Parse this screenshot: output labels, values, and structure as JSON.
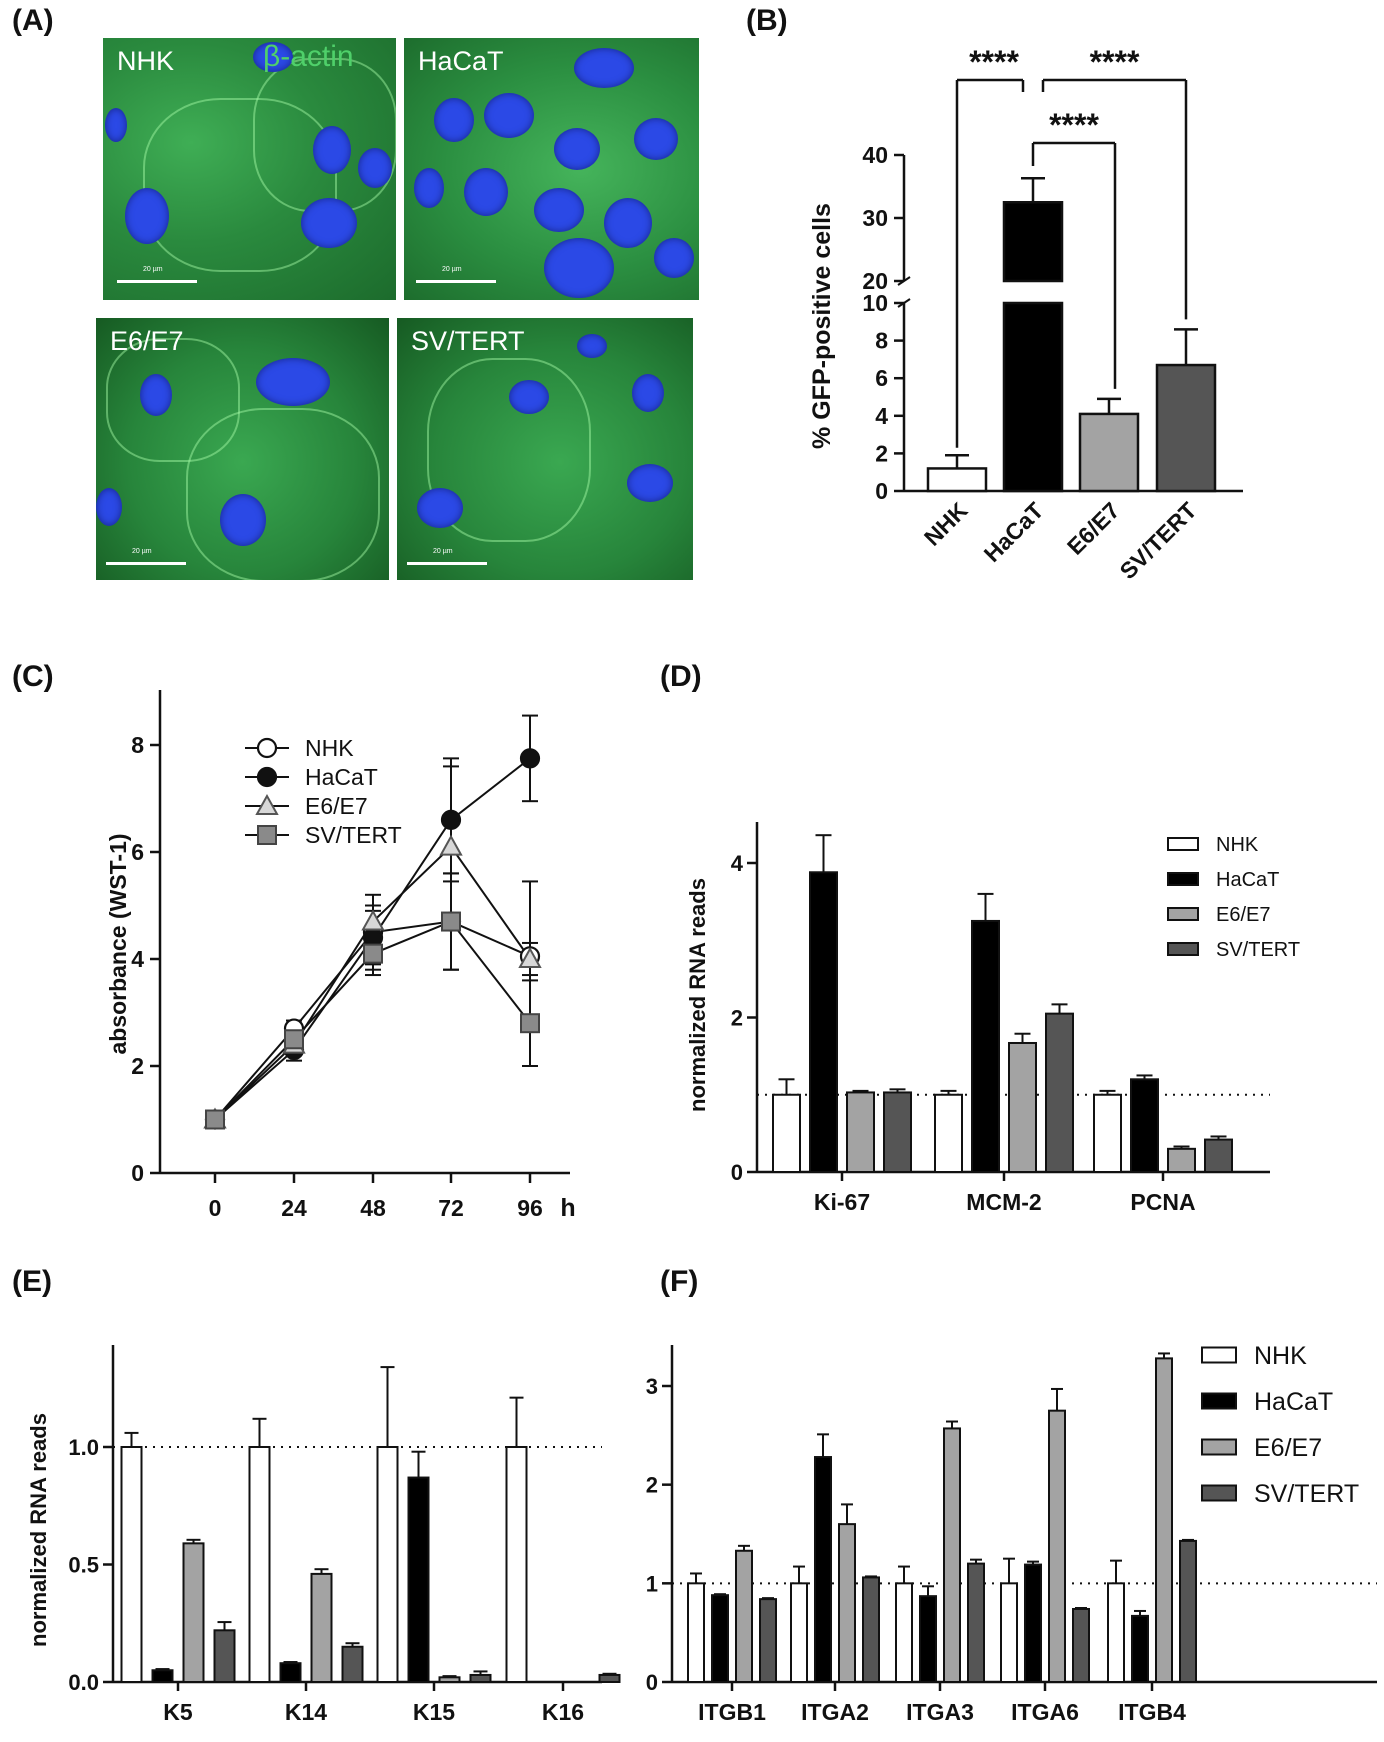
{
  "panels": {
    "A": "(A)",
    "B": "(B)",
    "C": "(C)",
    "D": "(D)",
    "E": "(E)",
    "F": "(F)"
  },
  "microscopy": {
    "stain_label": "β-actin",
    "scale_bar_text": "20 µm",
    "tiles": [
      {
        "label": "NHK"
      },
      {
        "label": "HaCaT"
      },
      {
        "label": "E6/E7"
      },
      {
        "label": "SV/TERT"
      }
    ]
  },
  "colors": {
    "NHK": "#ffffff",
    "HaCaT": "#000000",
    "E6/E7": "#a3a3a3",
    "SV/TERT": "#555555"
  },
  "chart_data": [
    {
      "id": "B",
      "type": "bar",
      "ylabel": "% GFP-positive cells",
      "categories": [
        "NHK",
        "HaCaT",
        "E6/E7",
        "SV/TERT"
      ],
      "values": [
        1.2,
        32.5,
        4.1,
        6.7
      ],
      "errors": [
        0.7,
        3.8,
        0.8,
        1.9
      ],
      "y_axis_break": {
        "lower": [
          0,
          10
        ],
        "upper": [
          20,
          40
        ]
      },
      "yticks_lower": [
        0,
        2,
        4,
        6,
        8,
        10
      ],
      "yticks_upper": [
        20,
        30,
        40
      ],
      "significance": [
        {
          "from": "NHK",
          "to": "HaCaT",
          "label": "****"
        },
        {
          "from": "HaCaT",
          "to": "SV/TERT",
          "label": "****"
        },
        {
          "from": "HaCaT",
          "to": "E6/E7",
          "label": "****"
        }
      ]
    },
    {
      "id": "C",
      "type": "line",
      "ylabel": "absorbance (WST-1)",
      "xunit": "h",
      "x": [
        0,
        24,
        48,
        72,
        96
      ],
      "ylim": [
        0,
        9
      ],
      "yticks": [
        0,
        2,
        4,
        6,
        8
      ],
      "legend_position": "top-left",
      "series": [
        {
          "name": "NHK",
          "marker": "circle-open",
          "values": [
            1.0,
            2.7,
            4.5,
            4.7,
            4.05
          ],
          "errors": [
            0,
            0.15,
            0.7,
            0.9,
            1.4
          ]
        },
        {
          "name": "HaCaT",
          "marker": "circle-filled",
          "values": [
            1.0,
            2.3,
            4.4,
            6.6,
            7.75
          ],
          "errors": [
            0,
            0.2,
            0.5,
            1.15,
            0.8
          ]
        },
        {
          "name": "E6/E7",
          "marker": "triangle",
          "values": [
            1.0,
            2.4,
            4.7,
            6.1,
            4.0
          ],
          "errors": [
            0,
            0.2,
            0.3,
            1.5,
            0.3
          ]
        },
        {
          "name": "SV/TERT",
          "marker": "square",
          "values": [
            1.0,
            2.5,
            4.1,
            4.7,
            2.8
          ],
          "errors": [
            0,
            0.2,
            0.4,
            0.9,
            0.8
          ]
        }
      ]
    },
    {
      "id": "D",
      "type": "bar",
      "ylabel": "normalized RNA reads",
      "categories": [
        "Ki-67",
        "MCM-2",
        "PCNA"
      ],
      "ylim": [
        0,
        4.5
      ],
      "yticks": [
        0,
        2,
        4
      ],
      "reference_line": 1.0,
      "legend_position": "top-right",
      "series": [
        {
          "name": "NHK",
          "values": [
            1.0,
            1.0,
            1.0
          ],
          "errors": [
            0.2,
            0.05,
            0.05
          ]
        },
        {
          "name": "HaCaT",
          "values": [
            3.88,
            3.25,
            1.2
          ],
          "errors": [
            0.48,
            0.35,
            0.05
          ]
        },
        {
          "name": "E6/E7",
          "values": [
            1.03,
            1.67,
            0.3
          ],
          "errors": [
            0.02,
            0.12,
            0.03
          ]
        },
        {
          "name": "SV/TERT",
          "values": [
            1.03,
            2.05,
            0.42
          ],
          "errors": [
            0.04,
            0.12,
            0.04
          ]
        }
      ]
    },
    {
      "id": "E",
      "type": "bar",
      "ylabel": "normalized RNA reads",
      "categories": [
        "K5",
        "K14",
        "K15",
        "K16"
      ],
      "ylim": [
        0,
        1.4
      ],
      "yticks": [
        0.0,
        0.5,
        1.0
      ],
      "reference_line": 1.0,
      "series": [
        {
          "name": "NHK",
          "values": [
            1.0,
            1.0,
            1.0,
            1.0
          ],
          "errors": [
            0.06,
            0.12,
            0.34,
            0.21
          ]
        },
        {
          "name": "HaCaT",
          "values": [
            0.05,
            0.08,
            0.87,
            0.0
          ],
          "errors": [
            0.005,
            0.005,
            0.11,
            0
          ]
        },
        {
          "name": "E6/E7",
          "values": [
            0.59,
            0.46,
            0.02,
            0.0
          ],
          "errors": [
            0.015,
            0.02,
            0.005,
            0
          ]
        },
        {
          "name": "SV/TERT",
          "values": [
            0.22,
            0.15,
            0.03,
            0.03
          ],
          "errors": [
            0.035,
            0.015,
            0.015,
            0.005
          ]
        }
      ]
    },
    {
      "id": "F",
      "type": "bar",
      "ylabel": "",
      "categories": [
        "ITGB1",
        "ITGA2",
        "ITGA3",
        "ITGA6",
        "ITGB4"
      ],
      "ylim": [
        0,
        3.4
      ],
      "yticks": [
        0,
        1,
        2,
        3
      ],
      "reference_line": 1.0,
      "legend_position": "top-right",
      "series": [
        {
          "name": "NHK",
          "values": [
            1.0,
            1.0,
            1.0,
            1.0,
            1.0
          ],
          "errors": [
            0.1,
            0.17,
            0.17,
            0.25,
            0.23
          ]
        },
        {
          "name": "HaCaT",
          "values": [
            0.88,
            2.28,
            0.87,
            1.19,
            0.67
          ],
          "errors": [
            0.01,
            0.23,
            0.1,
            0.03,
            0.05
          ]
        },
        {
          "name": "E6/E7",
          "values": [
            1.33,
            1.6,
            2.57,
            2.75,
            3.28
          ],
          "errors": [
            0.05,
            0.2,
            0.07,
            0.22,
            0.05
          ]
        },
        {
          "name": "SV/TERT",
          "values": [
            0.84,
            1.06,
            1.2,
            0.74,
            1.43
          ],
          "errors": [
            0.01,
            0.01,
            0.04,
            0.01,
            0.01
          ]
        }
      ]
    }
  ]
}
